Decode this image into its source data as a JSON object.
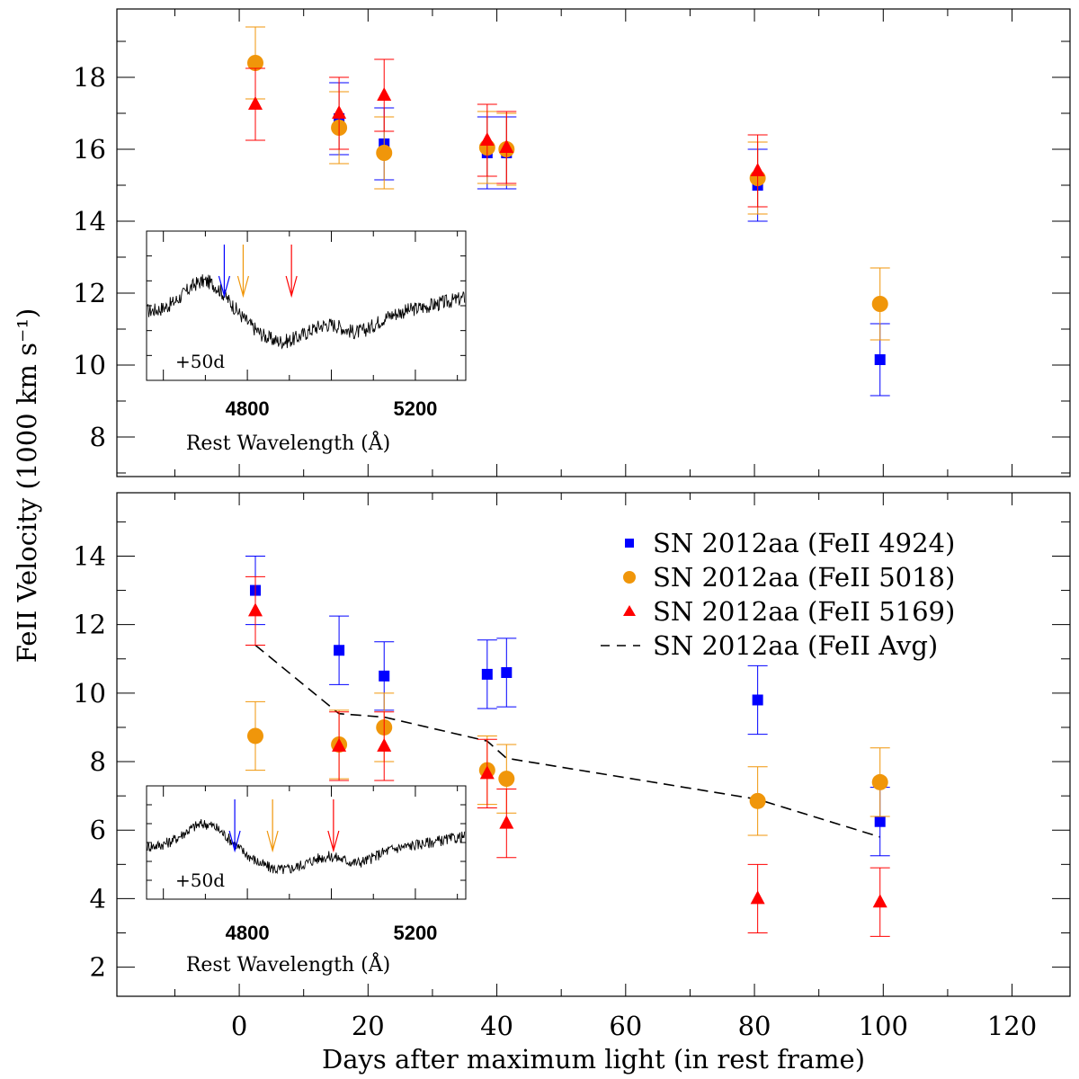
{
  "figure": {
    "ylabel": "FeII Velocity (1000 km s⁻¹)",
    "xlabel": "Days after maximum light (in rest frame)"
  },
  "chart_data": [
    {
      "type": "scatter",
      "panel": "top",
      "xlim": [
        -19,
        129
      ],
      "ylim": [
        6.9,
        19.9
      ],
      "x_ticks": [
        0,
        20,
        40,
        60,
        80,
        100,
        120
      ],
      "y_ticks": [
        8,
        10,
        12,
        14,
        16,
        18
      ],
      "series": [
        {
          "marker": "square",
          "color": "#0000ff",
          "points": [
            {
              "x": 15.5,
              "y": 16.85,
              "err": 1.0
            },
            {
              "x": 22.5,
              "y": 16.15,
              "err": 1.0
            },
            {
              "x": 38.5,
              "y": 15.9,
              "err": 1.0
            },
            {
              "x": 41.5,
              "y": 15.9,
              "err": 1.0
            },
            {
              "x": 80.5,
              "y": 15.0,
              "err": 1.0
            },
            {
              "x": 99.5,
              "y": 10.15,
              "err": 1.0
            }
          ]
        },
        {
          "marker": "circle",
          "color": "#f0960a",
          "points": [
            {
              "x": 2.5,
              "y": 18.4,
              "err": 1.0
            },
            {
              "x": 15.5,
              "y": 16.6,
              "err": 1.0
            },
            {
              "x": 22.5,
              "y": 15.9,
              "err": 1.0
            },
            {
              "x": 38.5,
              "y": 16.05,
              "err": 1.0
            },
            {
              "x": 41.5,
              "y": 16.0,
              "err": 1.0
            },
            {
              "x": 80.5,
              "y": 15.2,
              "err": 1.0
            },
            {
              "x": 99.5,
              "y": 11.7,
              "err": 1.0
            }
          ]
        },
        {
          "marker": "triangle",
          "color": "#ff0000",
          "points": [
            {
              "x": 2.5,
              "y": 17.25,
              "err": 1.0
            },
            {
              "x": 15.5,
              "y": 17.0,
              "err": 1.0
            },
            {
              "x": 22.5,
              "y": 17.5,
              "err": 1.0
            },
            {
              "x": 38.5,
              "y": 16.25,
              "err": 1.0
            },
            {
              "x": 41.5,
              "y": 16.05,
              "err": 1.0
            },
            {
              "x": 80.5,
              "y": 15.4,
              "err": 1.0
            }
          ]
        }
      ],
      "inset": {
        "label": "+50d",
        "xlabel": "Rest Wavelength (Å)",
        "x_ticks": [
          4800,
          5200
        ],
        "xlim": [
          4560,
          5320
        ],
        "arrows": [
          {
            "wavelength": 4745,
            "color": "#0000ff"
          },
          {
            "wavelength": 4790,
            "color": "#f0960a"
          },
          {
            "wavelength": 4905,
            "color": "#ff0000"
          }
        ]
      }
    },
    {
      "type": "scatter",
      "panel": "bottom",
      "xlim": [
        -19,
        129
      ],
      "ylim": [
        1.15,
        15.85
      ],
      "x_ticks": [
        0,
        20,
        40,
        60,
        80,
        100,
        120
      ],
      "x_tick_labels": [
        "0",
        "20",
        "40",
        "60",
        "80",
        "100",
        "120"
      ],
      "y_ticks": [
        2,
        4,
        6,
        8,
        10,
        12,
        14
      ],
      "legend": "top-right",
      "series": [
        {
          "name": "SN 2012aa (FeII 4924)",
          "marker": "square",
          "color": "#0000ff",
          "points": [
            {
              "x": 2.5,
              "y": 13.0,
              "err": 1.0
            },
            {
              "x": 15.5,
              "y": 11.25,
              "err": 1.0
            },
            {
              "x": 22.5,
              "y": 10.5,
              "err": 1.0
            },
            {
              "x": 38.5,
              "y": 10.55,
              "err": 1.0
            },
            {
              "x": 41.5,
              "y": 10.6,
              "err": 1.0
            },
            {
              "x": 80.5,
              "y": 9.8,
              "err": 1.0
            },
            {
              "x": 99.5,
              "y": 6.25,
              "err": 1.0
            }
          ]
        },
        {
          "name": "SN 2012aa (FeII 5018)",
          "marker": "circle",
          "color": "#f0960a",
          "points": [
            {
              "x": 2.5,
              "y": 8.75,
              "err": 1.0
            },
            {
              "x": 15.5,
              "y": 8.5,
              "err": 1.0
            },
            {
              "x": 22.5,
              "y": 9.0,
              "err": 1.0
            },
            {
              "x": 38.5,
              "y": 7.75,
              "err": 1.0
            },
            {
              "x": 41.5,
              "y": 7.5,
              "err": 1.0
            },
            {
              "x": 80.5,
              "y": 6.85,
              "err": 1.0
            },
            {
              "x": 99.5,
              "y": 7.4,
              "err": 1.0
            }
          ]
        },
        {
          "name": "SN 2012aa (FeII 5169)",
          "marker": "triangle",
          "color": "#ff0000",
          "points": [
            {
              "x": 2.5,
              "y": 12.4,
              "err": 1.0
            },
            {
              "x": 15.5,
              "y": 8.45,
              "err": 1.0
            },
            {
              "x": 22.5,
              "y": 8.45,
              "err": 1.0
            },
            {
              "x": 38.5,
              "y": 7.65,
              "err": 1.0
            },
            {
              "x": 41.5,
              "y": 6.2,
              "err": 1.0
            },
            {
              "x": 80.5,
              "y": 4.0,
              "err": 1.0
            },
            {
              "x": 99.5,
              "y": 3.9,
              "err": 1.0
            }
          ]
        },
        {
          "name": "SN 2012aa (FeII Avg)",
          "marker": "dashed-line",
          "color": "#000000",
          "points": [
            {
              "x": 2.5,
              "y": 11.4
            },
            {
              "x": 15.5,
              "y": 9.4
            },
            {
              "x": 22.5,
              "y": 9.3
            },
            {
              "x": 38.5,
              "y": 8.6
            },
            {
              "x": 41.5,
              "y": 8.1
            },
            {
              "x": 80.5,
              "y": 6.9
            },
            {
              "x": 99.5,
              "y": 5.8
            }
          ]
        }
      ],
      "inset": {
        "label": "+50d",
        "xlabel": "Rest Wavelength (Å)",
        "x_ticks": [
          4800,
          5200
        ],
        "xlim": [
          4560,
          5320
        ],
        "arrows": [
          {
            "wavelength": 4770,
            "color": "#0000ff"
          },
          {
            "wavelength": 4860,
            "color": "#f0960a"
          },
          {
            "wavelength": 5005,
            "color": "#ff0000"
          }
        ]
      }
    }
  ]
}
